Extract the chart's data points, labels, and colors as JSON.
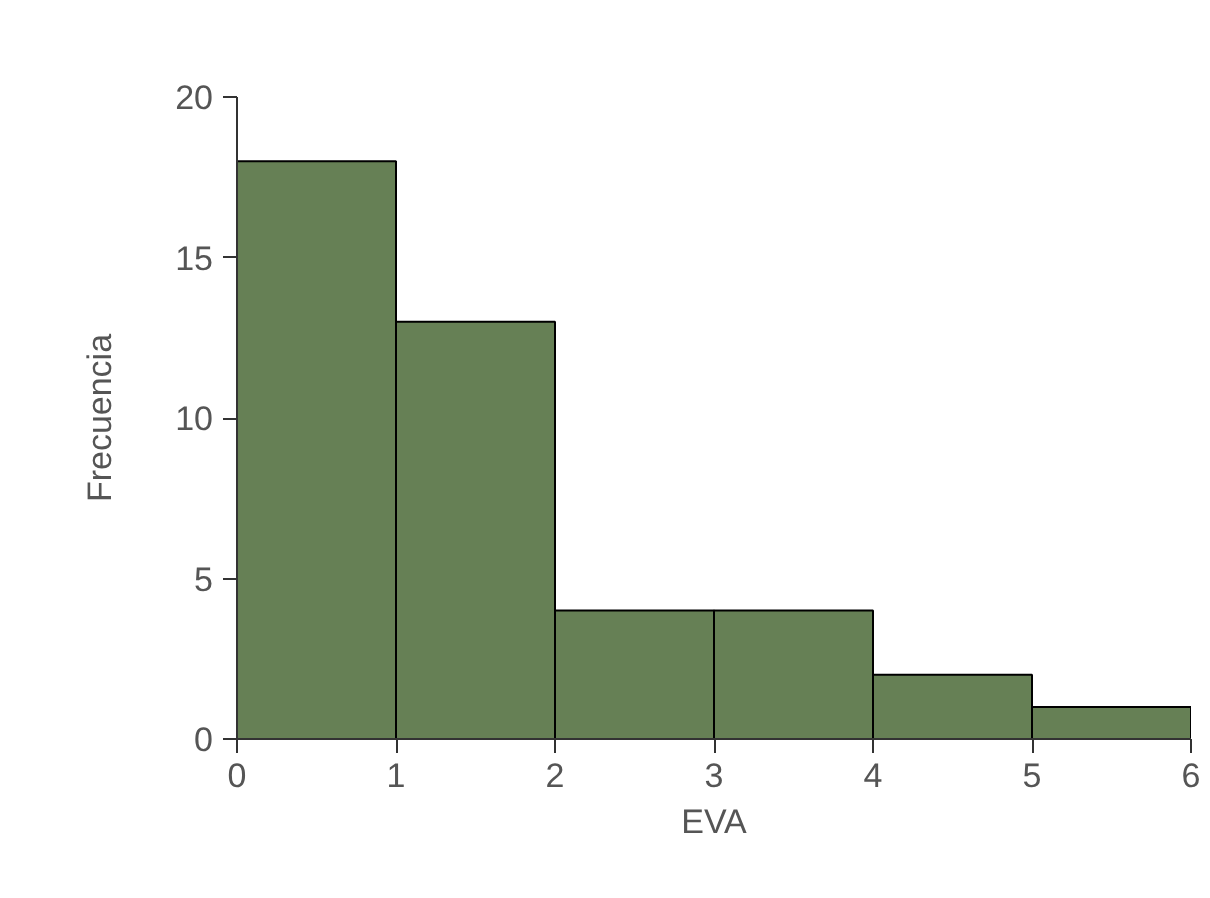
{
  "chart_data": {
    "type": "histogram",
    "xlabel": "EVA",
    "ylabel": "Frecuencia",
    "bins": [
      0,
      1,
      2,
      3,
      4,
      5,
      6
    ],
    "values": [
      18,
      13,
      4,
      4,
      2,
      1
    ],
    "color": "#668055",
    "xlim": [
      0,
      6
    ],
    "ylim": [
      0,
      20
    ],
    "xticks": [
      0,
      1,
      2,
      3,
      4,
      5,
      6
    ],
    "yticks": [
      0,
      5,
      10,
      15,
      20
    ],
    "grid": false
  }
}
